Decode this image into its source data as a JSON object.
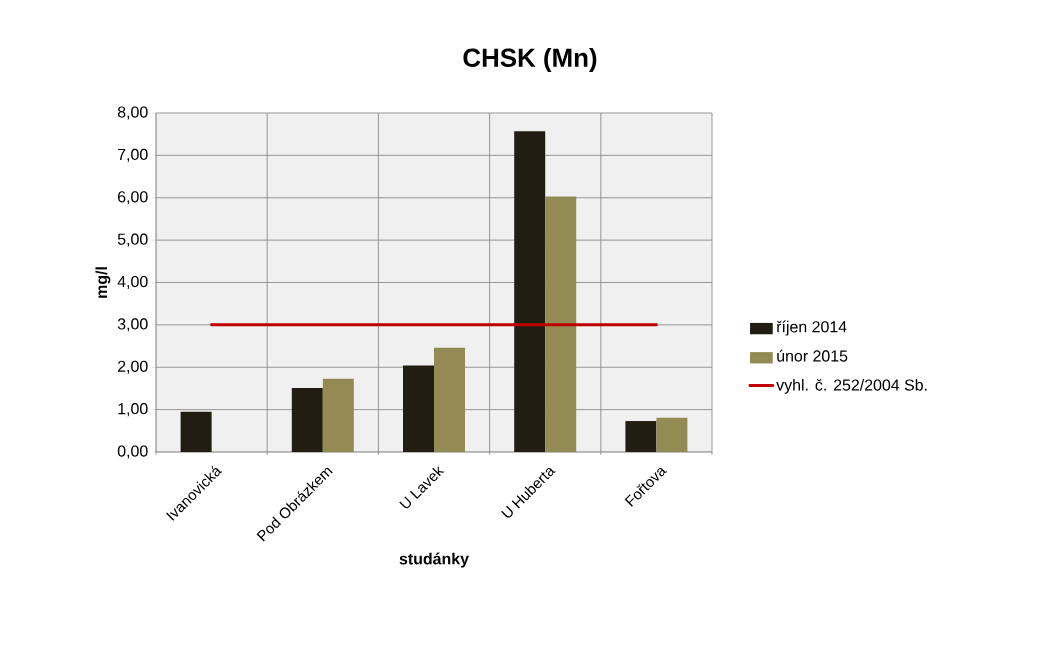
{
  "chart_data": {
    "type": "bar",
    "title": "CHSK (Mn)",
    "xlabel": "studánky",
    "ylabel": "mg/l",
    "categories": [
      "Ivanovická",
      "Pod Obrázkem",
      "U Lavek",
      "U Huberta",
      "Fořtova"
    ],
    "series": [
      {
        "name": "říjen 2014",
        "color": "#201e12",
        "values": [
          0.95,
          1.51,
          2.04,
          7.57,
          0.73
        ]
      },
      {
        "name": "únor 2015",
        "color": "#948a54",
        "values": [
          null,
          1.73,
          2.46,
          6.03,
          0.81
        ]
      },
      {
        "name": "vyhl. č. 252/2004 Sb.",
        "type": "line",
        "color": "#c00000",
        "values": [
          3,
          3,
          3,
          3,
          3
        ]
      }
    ],
    "ylim": [
      0,
      8
    ],
    "yticks": [
      {
        "value": 0,
        "label": "0,00"
      },
      {
        "value": 1,
        "label": "1,00"
      },
      {
        "value": 2,
        "label": "2,00"
      },
      {
        "value": 3,
        "label": "3,00"
      },
      {
        "value": 4,
        "label": "4,00"
      },
      {
        "value": 5,
        "label": "5,00"
      },
      {
        "value": 6,
        "label": "6,00"
      },
      {
        "value": 7,
        "label": "7,00"
      },
      {
        "value": 8,
        "label": "8,00"
      }
    ],
    "grid": true,
    "legend": "right"
  }
}
